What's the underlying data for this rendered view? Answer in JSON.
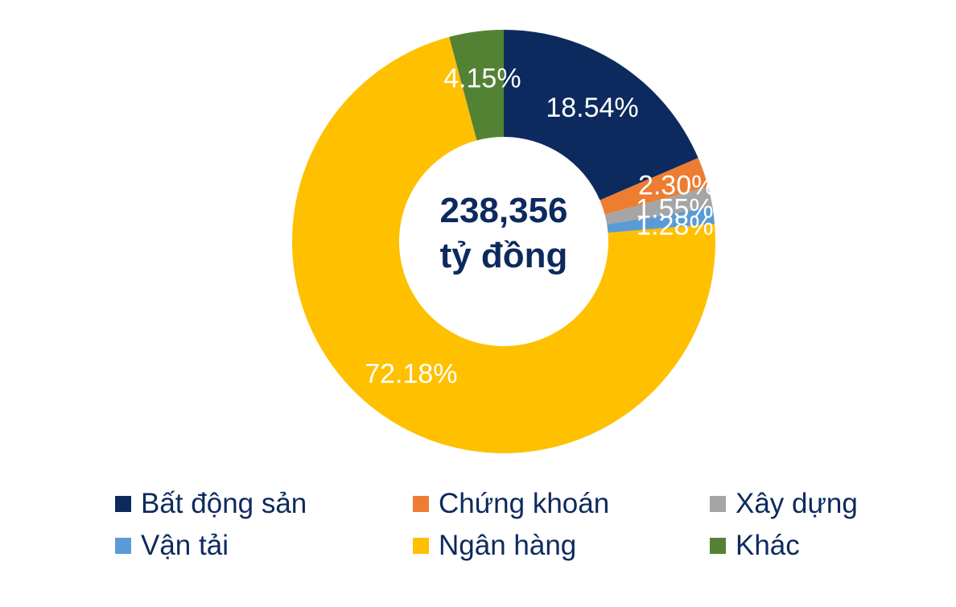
{
  "chart_data": {
    "type": "pie",
    "center_label": {
      "line1": "238,356",
      "line2": "tỷ đồng"
    },
    "categories": [
      "Bất động sản",
      "Chứng khoán",
      "Xây dựng",
      "Vận tải",
      "Ngân hàng",
      "Khác"
    ],
    "values": [
      18.54,
      2.3,
      1.55,
      1.28,
      72.18,
      4.15
    ],
    "labels": [
      "18.54%",
      "2.30%",
      "1.55%",
      "1.28%",
      "72.18%",
      "4.15%"
    ],
    "colors": [
      "#0d2a5e",
      "#ed7d31",
      "#a5a5a5",
      "#5b9bd5",
      "#ffc000",
      "#548235"
    ],
    "legend_position": "bottom"
  }
}
